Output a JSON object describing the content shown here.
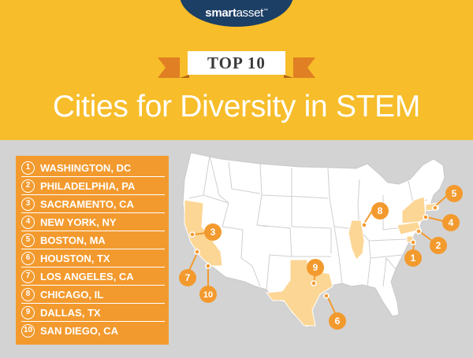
{
  "brand": {
    "logo": "smartasset",
    "logo_bold": "smart",
    "logo_light": "asset",
    "tm": "™"
  },
  "ribbon": {
    "label": "TOP 10"
  },
  "title": "Cities for Diversity in STEM",
  "colors": {
    "header": "#f7bd2a",
    "logo_bg": "#1c3f66",
    "list_bg": "#f39a2e",
    "marker": "#f39a2e",
    "highlight_state": "#fcd695",
    "map_bg": "#d3d3d3"
  },
  "rankings": [
    {
      "rank": "1",
      "city": "WASHINGTON, DC"
    },
    {
      "rank": "2",
      "city": "PHILADELPHIA, PA"
    },
    {
      "rank": "3",
      "city": "SACRAMENTO, CA"
    },
    {
      "rank": "4",
      "city": "NEW YORK, NY"
    },
    {
      "rank": "5",
      "city": "BOSTON, MA"
    },
    {
      "rank": "6",
      "city": "HOUSTON, TX"
    },
    {
      "rank": "7",
      "city": "LOS ANGELES, CA"
    },
    {
      "rank": "8",
      "city": "CHICAGO, IL"
    },
    {
      "rank": "9",
      "city": "DALLAS, TX"
    },
    {
      "rank": "10",
      "city": "SAN DIEGO, CA"
    }
  ],
  "map_markers": [
    {
      "label": "1"
    },
    {
      "label": "2"
    },
    {
      "label": "3"
    },
    {
      "label": "4"
    },
    {
      "label": "5"
    },
    {
      "label": "6"
    },
    {
      "label": "7"
    },
    {
      "label": "8"
    },
    {
      "label": "9"
    },
    {
      "label": "10"
    }
  ]
}
